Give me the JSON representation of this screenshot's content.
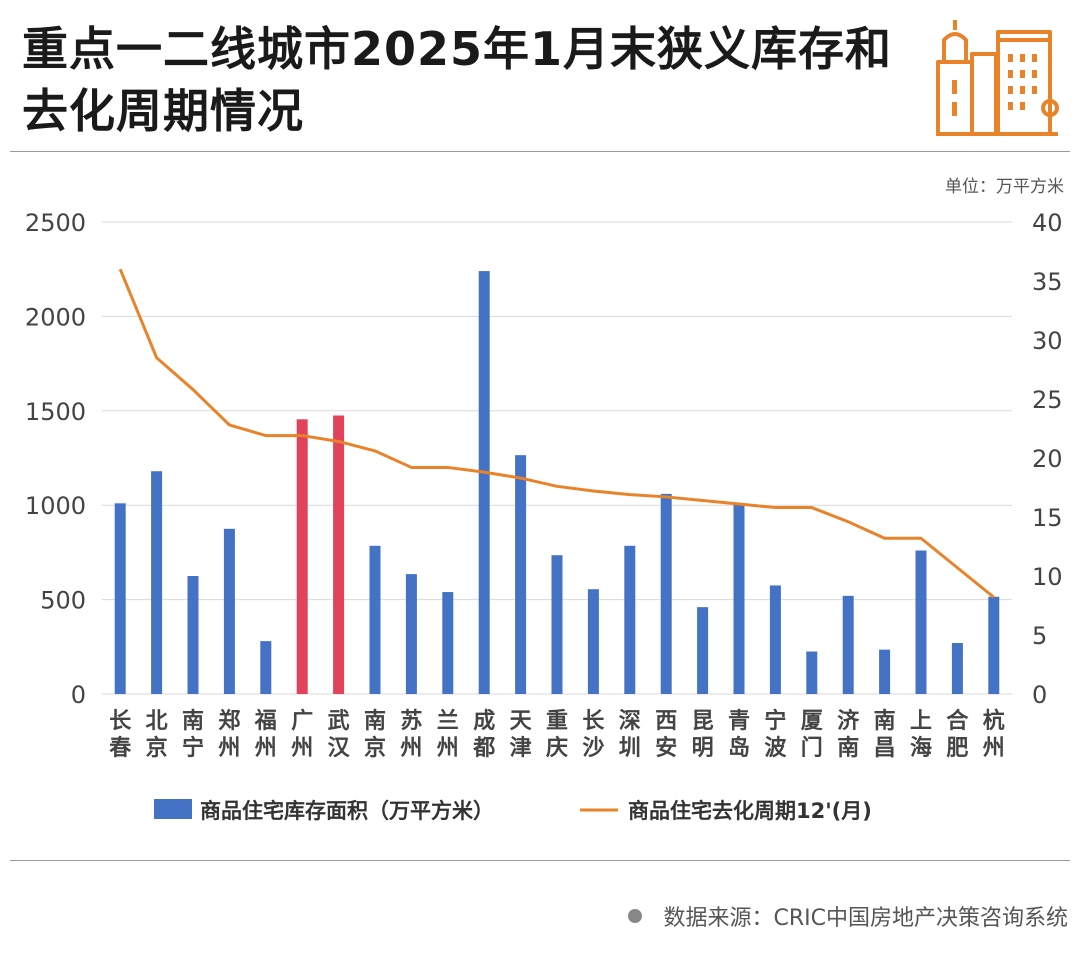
{
  "header": {
    "title": "重点一二线城市2025年1月末狭义库存和去化周期情况",
    "unit": "单位：万平方米"
  },
  "footer": {
    "source": "数据来源：CRIC中国房地产决策咨询系统"
  },
  "colors": {
    "bar_default": "#4472C4",
    "bar_highlight": "#E0435A",
    "line": "#E8832A",
    "logo": "#E8832A"
  },
  "chart_data": {
    "type": "bar",
    "categories": [
      "长春",
      "北京",
      "南宁",
      "郑州",
      "福州",
      "广州",
      "武汉",
      "南京",
      "苏州",
      "兰州",
      "成都",
      "天津",
      "重庆",
      "长沙",
      "深圳",
      "西安",
      "昆明",
      "青岛",
      "宁波",
      "厦门",
      "济南",
      "南昌",
      "上海",
      "合肥",
      "杭州"
    ],
    "highlight_categories": [
      "广州",
      "武汉"
    ],
    "series": [
      {
        "name": "商品住宅库存面积（万平方米）",
        "type": "bar",
        "axis": "left",
        "values": [
          1010,
          1180,
          625,
          875,
          280,
          1455,
          1475,
          785,
          635,
          540,
          2240,
          1265,
          735,
          555,
          785,
          1060,
          460,
          1005,
          575,
          225,
          520,
          235,
          760,
          270,
          515
        ]
      },
      {
        "name": "商品住宅去化周期12'(月)",
        "type": "line",
        "axis": "right",
        "values": [
          36.0,
          28.5,
          25.8,
          22.8,
          21.9,
          21.9,
          21.4,
          20.6,
          19.2,
          19.2,
          18.8,
          18.3,
          17.6,
          17.2,
          16.9,
          16.7,
          16.4,
          16.1,
          15.8,
          15.8,
          14.6,
          13.2,
          13.2,
          10.7,
          8.2
        ]
      }
    ],
    "y_left": {
      "ylim": [
        0,
        2500
      ],
      "ticks": [
        "0",
        "500",
        "1000",
        "1500",
        "2000",
        "2500"
      ]
    },
    "y_right": {
      "ylim": [
        0,
        40
      ],
      "ticks": [
        "0",
        "5",
        "10",
        "15",
        "20",
        "25",
        "30",
        "35",
        "40"
      ]
    },
    "grid": true,
    "legend_position": "bottom"
  }
}
